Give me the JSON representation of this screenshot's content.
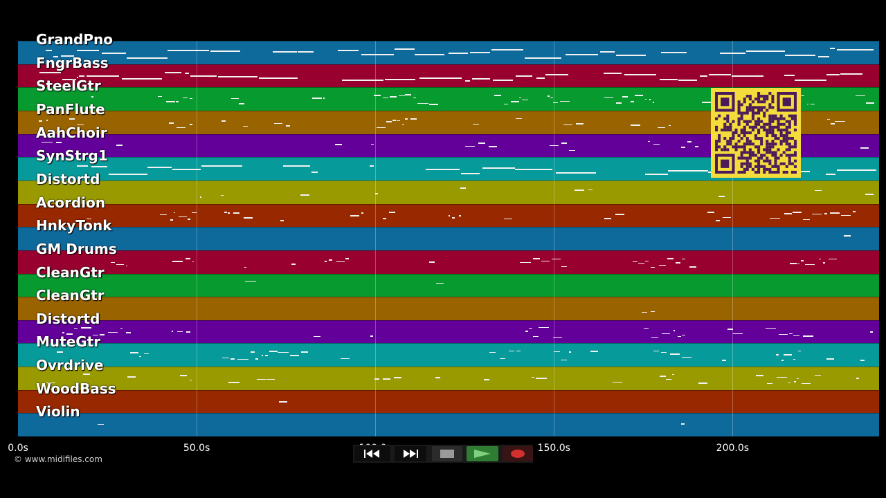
{
  "tracks": [
    {
      "name": "GrandPno",
      "color": "#0f6a9c"
    },
    {
      "name": "FngrBass",
      "color": "#98002f"
    },
    {
      "name": "SteelGtr",
      "color": "#079a2f"
    },
    {
      "name": "PanFlute",
      "color": "#996300"
    },
    {
      "name": "AahChoir",
      "color": "#63009a"
    },
    {
      "name": "SynStrg1",
      "color": "#079a9a"
    },
    {
      "name": "Distortd",
      "color": "#999a00"
    },
    {
      "name": "Acordion",
      "color": "#982800"
    },
    {
      "name": "HnkyTonk",
      "color": "#0f6a9c"
    },
    {
      "name": "GM Drums",
      "color": "#98002f"
    },
    {
      "name": "CleanGtr",
      "color": "#079a2f"
    },
    {
      "name": "CleanGtr",
      "color": "#996300"
    },
    {
      "name": "Distortd",
      "color": "#63009a"
    },
    {
      "name": "MuteGtr",
      "color": "#079a9a"
    },
    {
      "name": "Ovrdrive",
      "color": "#999a00"
    },
    {
      "name": "WoodBass",
      "color": "#982800"
    },
    {
      "name": "Violin",
      "color": "#0f6a9c"
    }
  ],
  "timeline": {
    "ticks": [
      "0.0s",
      "50.0s",
      "100.0s",
      "150.0s",
      "200.0s"
    ],
    "tick_seconds": [
      0,
      50,
      100,
      150,
      200
    ],
    "duration_seconds": 241
  },
  "copyright": "© www.midifiles.com",
  "qr_code": {
    "color": "#f4dc3c",
    "ink": "#4a1a5a"
  },
  "transport": {
    "rewind_icon": "rewind-icon",
    "fast_forward_icon": "fast-forward-icon",
    "stop_icon": "stop-icon",
    "play_icon": "play-icon",
    "record_icon": "record-icon",
    "active_color": "#2e7d32",
    "record_color": "#d32f2f"
  }
}
